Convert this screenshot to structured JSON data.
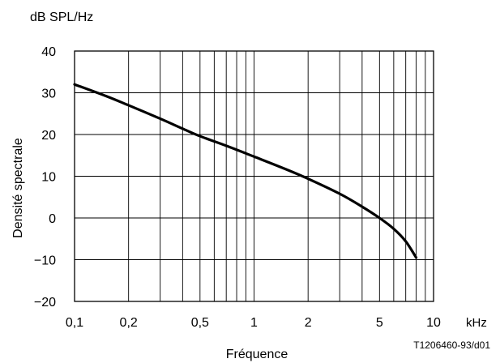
{
  "chart_data": {
    "type": "line",
    "y_unit_label": "dB SPL/Hz",
    "ylabel": "Densité spectrale",
    "xlabel": "Fréquence",
    "x_unit_label": "kHz",
    "reference": "T1206460-93/d01",
    "x_scale": "log",
    "xlim": [
      0.1,
      10
    ],
    "ylim": [
      -20,
      40
    ],
    "grid": true,
    "x_ticks": [
      0.1,
      0.2,
      0.5,
      1,
      2,
      5,
      10
    ],
    "x_tick_labels": [
      "0,1",
      "0,2",
      "0,5",
      "1",
      "2",
      "5",
      "10"
    ],
    "y_ticks": [
      40,
      30,
      20,
      10,
      0,
      -10,
      -20
    ],
    "y_tick_labels": [
      "40",
      "30",
      "20",
      "10",
      "0",
      "−10",
      "−20"
    ],
    "line_color": "#000000",
    "series": [
      {
        "x": [
          0.1,
          0.15,
          0.2,
          0.3,
          0.4,
          0.5,
          0.7,
          1.0,
          1.5,
          2.0,
          3.0,
          4.0,
          5.0,
          6.0,
          7.0,
          8.0
        ],
        "y": [
          32.0,
          29.2,
          27.0,
          23.8,
          21.4,
          19.6,
          17.3,
          14.7,
          11.7,
          9.4,
          5.8,
          2.7,
          0.0,
          -2.6,
          -5.6,
          -9.5
        ]
      }
    ]
  }
}
